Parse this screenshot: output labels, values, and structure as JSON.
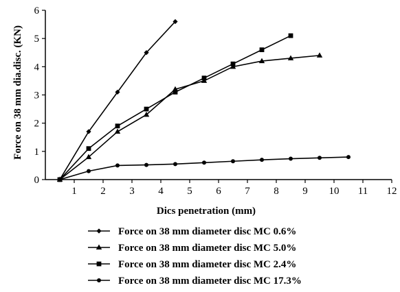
{
  "chart_data": {
    "type": "line",
    "title": "",
    "xlabel": "Dics penetration (mm)",
    "ylabel": "Force on 38 mm dia.disc. (KN)",
    "xlim": [
      0,
      12
    ],
    "ylim": [
      0,
      6
    ],
    "xticks": [
      "1",
      "2",
      "3",
      "4",
      "5",
      "6",
      "7",
      "8",
      "9",
      "10",
      "11",
      "12"
    ],
    "yticks": [
      "0",
      "1",
      "2",
      "3",
      "4",
      "5",
      "6"
    ],
    "grid": false,
    "legend_position": "bottom",
    "series": [
      {
        "name": "Force on 38 mm diameter disc MC 0.6%",
        "marker": "diamond",
        "x": [
          0.5,
          1.5,
          2.5,
          3.5,
          4.5
        ],
        "y": [
          0,
          1.7,
          3.1,
          4.5,
          5.6
        ]
      },
      {
        "name": "Force on 38 mm diameter disc MC 5.0%",
        "marker": "triangle",
        "x": [
          0.5,
          1.5,
          2.5,
          3.5,
          4.5,
          5.5,
          6.5,
          7.5,
          8.5,
          9.5
        ],
        "y": [
          0,
          0.8,
          1.7,
          2.3,
          3.2,
          3.5,
          4.0,
          4.2,
          4.3,
          4.4
        ]
      },
      {
        "name": "Force on 38 mm diameter disc MC 2.4%",
        "marker": "square",
        "x": [
          0.5,
          1.5,
          2.5,
          3.5,
          4.5,
          5.5,
          6.5,
          7.5,
          8.5
        ],
        "y": [
          0,
          1.1,
          1.9,
          2.5,
          3.1,
          3.6,
          4.1,
          4.6,
          5.1
        ]
      },
      {
        "name": "Force on 38 mm diameter disc MC 17.3%",
        "marker": "circle",
        "x": [
          0.5,
          1.5,
          2.5,
          3.5,
          4.5,
          5.5,
          6.5,
          7.5,
          8.5,
          9.5,
          10.5
        ],
        "y": [
          0,
          0.3,
          0.5,
          0.52,
          0.55,
          0.6,
          0.65,
          0.7,
          0.74,
          0.77,
          0.8
        ]
      }
    ]
  }
}
